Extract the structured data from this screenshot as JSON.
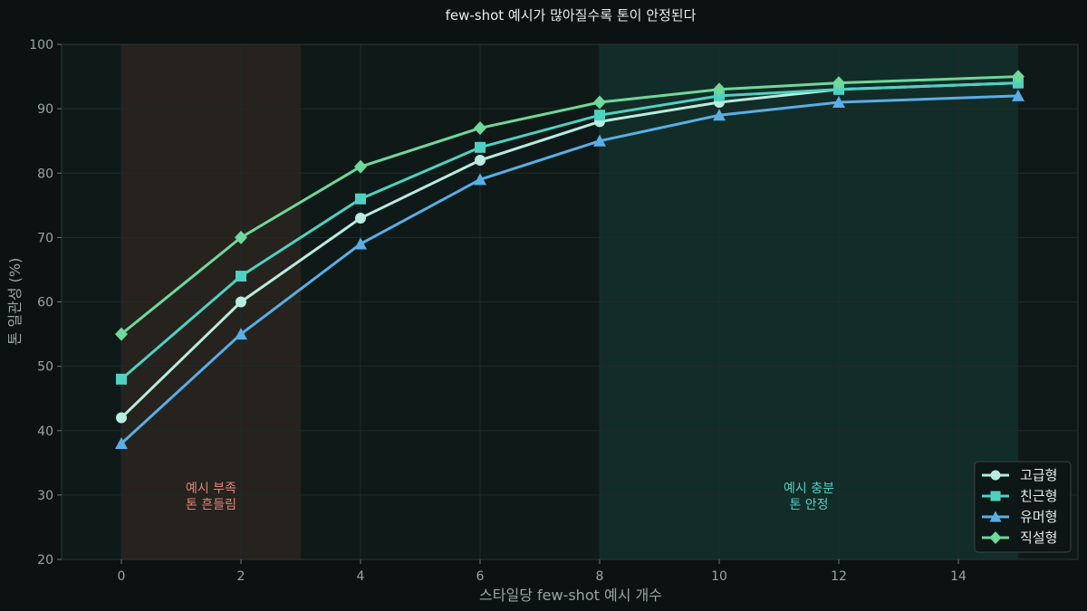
{
  "chart_data": {
    "type": "line",
    "title": "few-shot 예시가 많아질수록 톤이 안정된다",
    "xlabel": "스타일당 few-shot 예시 개수",
    "ylabel": "톤 일관성 (%)",
    "xlim": [
      -1,
      16
    ],
    "ylim": [
      20,
      100
    ],
    "xticks": [
      0,
      2,
      4,
      6,
      8,
      10,
      12,
      14
    ],
    "yticks": [
      20,
      30,
      40,
      50,
      60,
      70,
      80,
      90,
      100
    ],
    "x": [
      0,
      2,
      4,
      6,
      8,
      10,
      12,
      15
    ],
    "grid": true,
    "legend_position": "bottom-right",
    "series": [
      {
        "name": "고급형",
        "values": [
          42,
          60,
          73,
          82,
          88,
          91,
          93,
          94
        ],
        "color": "#b8ecdf",
        "marker": "circle"
      },
      {
        "name": "친근형",
        "values": [
          48,
          64,
          76,
          84,
          89,
          92,
          93,
          94
        ],
        "color": "#4fd1c1",
        "marker": "square"
      },
      {
        "name": "유머형",
        "values": [
          38,
          55,
          69,
          79,
          85,
          89,
          91,
          92
        ],
        "color": "#5aaee6",
        "marker": "triangle"
      },
      {
        "name": "직설형",
        "values": [
          55,
          70,
          81,
          87,
          91,
          93,
          94,
          95
        ],
        "color": "#6fd89a",
        "marker": "diamond"
      }
    ],
    "regions": [
      {
        "x_start": 0,
        "x_end": 3,
        "label_line1": "예시 부족",
        "label_line2": "톤 흔들림",
        "color": "#2a2420",
        "text_color": "#e0857a",
        "label_x": 1.5,
        "label_y": 30
      },
      {
        "x_start": 8,
        "x_end": 15,
        "label_line1": "예시 충분",
        "label_line2": "톤 안정",
        "color": "#13302c",
        "text_color": "#4fd1c1",
        "label_x": 11.5,
        "label_y": 30
      }
    ]
  }
}
